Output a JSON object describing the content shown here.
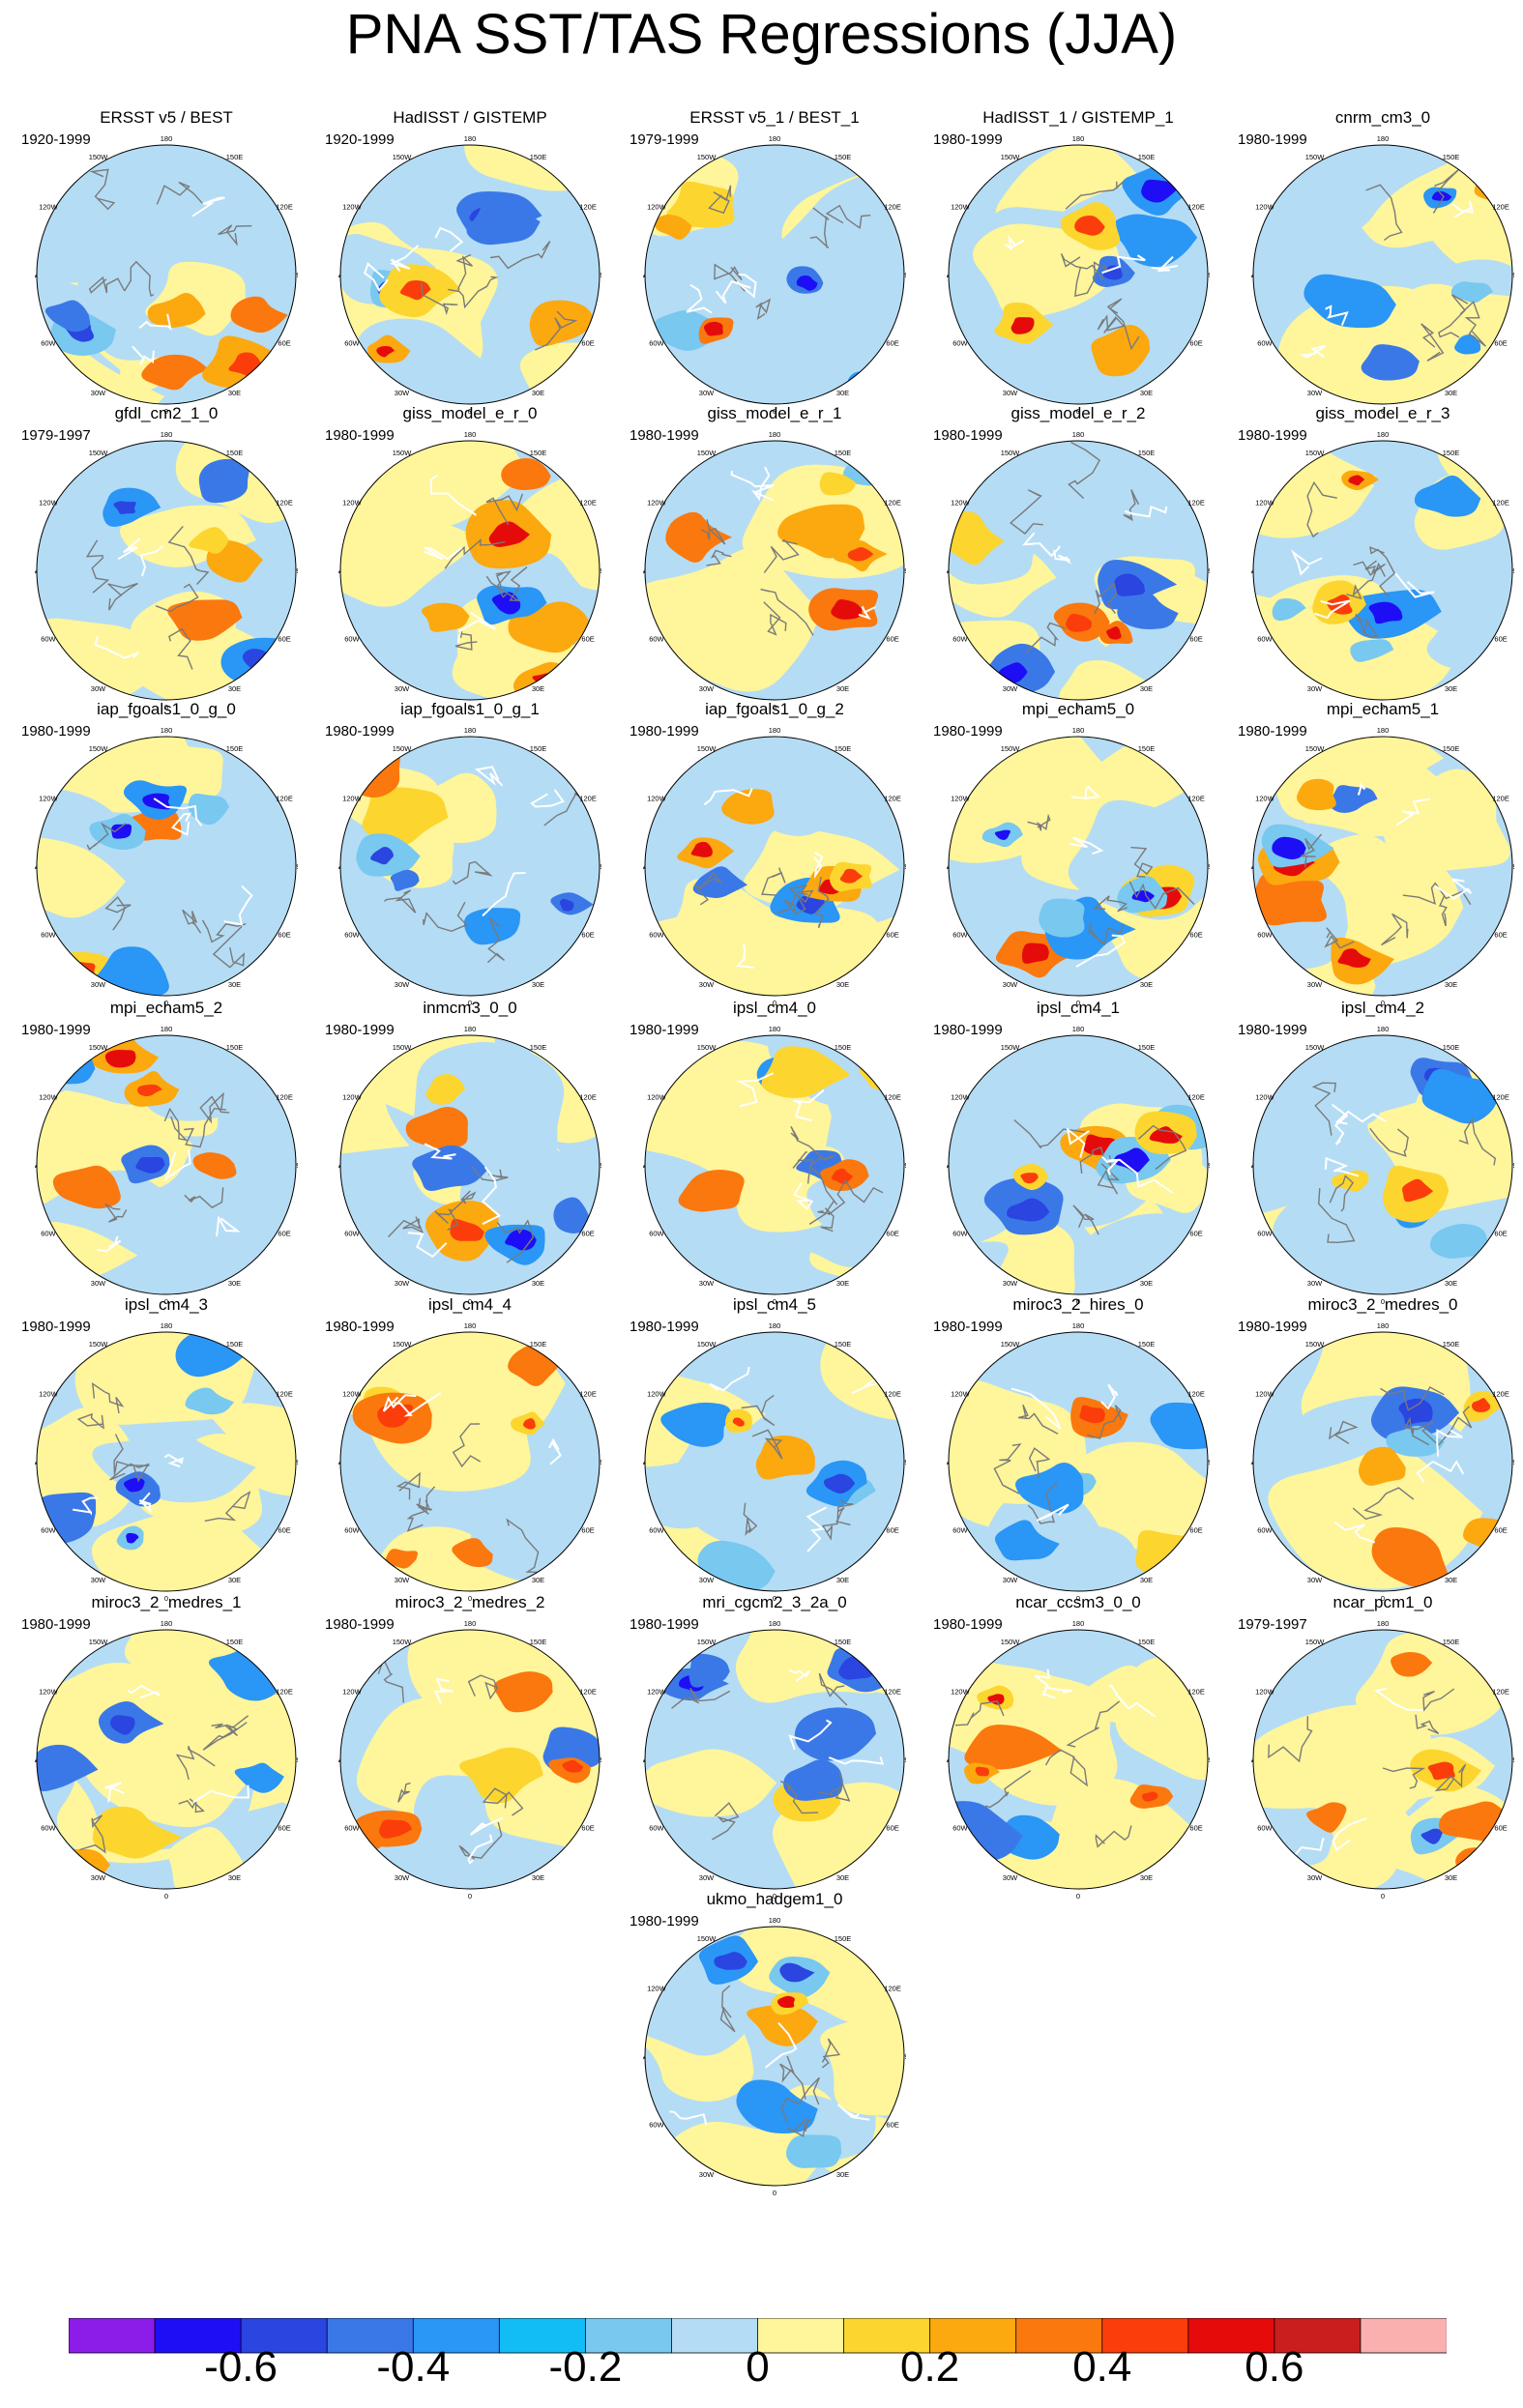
{
  "title": "PNA SST/TAS Regressions (JJA)",
  "chart_data": {
    "type": "heatmap",
    "projection": "polar-stereographic-north",
    "map_lon_labels": [
      "180",
      "150E",
      "120E",
      "90E",
      "60E",
      "30E",
      "0",
      "30W",
      "60W",
      "90W",
      "120W",
      "150W"
    ],
    "panels": [
      {
        "name": "ERSST v5 / BEST",
        "period": "1920-1999"
      },
      {
        "name": "HadISST / GISTEMP",
        "period": "1920-1999"
      },
      {
        "name": "ERSST v5_1 / BEST_1",
        "period": "1979-1999"
      },
      {
        "name": "HadISST_1 / GISTEMP_1",
        "period": "1980-1999"
      },
      {
        "name": "cnrm_cm3_0",
        "period": "1980-1999"
      },
      {
        "name": "gfdl_cm2_1_0",
        "period": "1979-1997"
      },
      {
        "name": "giss_model_e_r_0",
        "period": "1980-1999"
      },
      {
        "name": "giss_model_e_r_1",
        "period": "1980-1999"
      },
      {
        "name": "giss_model_e_r_2",
        "period": "1980-1999"
      },
      {
        "name": "giss_model_e_r_3",
        "period": "1980-1999"
      },
      {
        "name": "iap_fgoals1_0_g_0",
        "period": "1980-1999"
      },
      {
        "name": "iap_fgoals1_0_g_1",
        "period": "1980-1999"
      },
      {
        "name": "iap_fgoals1_0_g_2",
        "period": "1980-1999"
      },
      {
        "name": "mpi_echam5_0",
        "period": "1980-1999"
      },
      {
        "name": "mpi_echam5_1",
        "period": "1980-1999"
      },
      {
        "name": "mpi_echam5_2",
        "period": "1980-1999"
      },
      {
        "name": "inmcm3_0_0",
        "period": "1980-1999"
      },
      {
        "name": "ipsl_cm4_0",
        "period": "1980-1999"
      },
      {
        "name": "ipsl_cm4_1",
        "period": "1980-1999"
      },
      {
        "name": "ipsl_cm4_2",
        "period": "1980-1999"
      },
      {
        "name": "ipsl_cm4_3",
        "period": "1980-1999"
      },
      {
        "name": "ipsl_cm4_4",
        "period": "1980-1999"
      },
      {
        "name": "ipsl_cm4_5",
        "period": "1980-1999"
      },
      {
        "name": "miroc3_2_hires_0",
        "period": "1980-1999"
      },
      {
        "name": "miroc3_2_medres_0",
        "period": "1980-1999"
      },
      {
        "name": "miroc3_2_medres_1",
        "period": "1980-1999"
      },
      {
        "name": "miroc3_2_medres_2",
        "period": "1980-1999"
      },
      {
        "name": "mri_cgcm2_3_2a_0",
        "period": "1980-1999"
      },
      {
        "name": "ncar_ccsm3_0_0",
        "period": "1980-1999"
      },
      {
        "name": "ncar_pcm1_0",
        "period": "1979-1997"
      },
      {
        "name": "ukmo_hadgem1_0",
        "period": "1980-1999"
      }
    ],
    "colorbar": {
      "colors": [
        "#8c1ce8",
        "#1e0ef5",
        "#2a45e0",
        "#3a78e8",
        "#2a96f5",
        "#12bdf5",
        "#78c8f0",
        "#b4dcf5",
        "#fff59a",
        "#fcd52e",
        "#fca80f",
        "#fa780d",
        "#fa3d0b",
        "#e60b0b",
        "#c81e1e",
        "#fbb0b0"
      ],
      "tick_labels": [
        "-0.6",
        "-0.4",
        "-0.2",
        "0",
        "0.2",
        "0.4",
        "0.6"
      ],
      "tick_values": [
        -0.6,
        -0.4,
        -0.2,
        0,
        0.2,
        0.4,
        0.6
      ],
      "range": [
        -0.8,
        0.8
      ]
    }
  }
}
